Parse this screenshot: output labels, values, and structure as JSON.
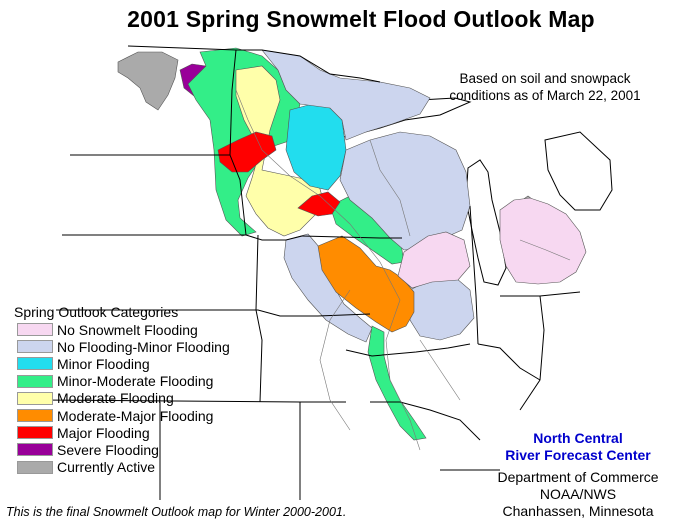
{
  "title": "2001 Spring Snowmelt Flood Outlook Map",
  "subtitle": {
    "line1": "Based on soil and snowpack",
    "line2": "conditions as of March 22, 2001"
  },
  "legend": {
    "title": "Spring Outlook Categories",
    "items": [
      {
        "label": "No Snowmelt Flooding",
        "color": "#f7d8f1"
      },
      {
        "label": "No Flooding-Minor Flooding",
        "color": "#ccd5ee"
      },
      {
        "label": "Minor Flooding",
        "color": "#22ddee"
      },
      {
        "label": "Minor-Moderate Flooding",
        "color": "#33ee88"
      },
      {
        "label": "Moderate Flooding",
        "color": "#ffffaa"
      },
      {
        "label": "Moderate-Major Flooding",
        "color": "#ff8c00"
      },
      {
        "label": "Major Flooding",
        "color": "#ff0000"
      },
      {
        "label": "Severe Flooding",
        "color": "#990099"
      },
      {
        "label": "Currently Active",
        "color": "#aaaaaa"
      }
    ]
  },
  "agency": {
    "rfc_line1": "North Central",
    "rfc_line2": "River Forecast Center",
    "dept_line1": "Department of Commerce",
    "dept_line2": "NOAA/NWS",
    "dept_line3": "Chanhassen, Minnesota"
  },
  "footnote": "This is the final Snowmelt Outlook map for Winter 2000-2001."
}
